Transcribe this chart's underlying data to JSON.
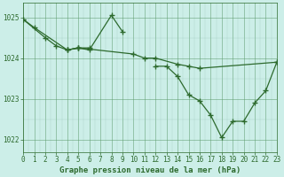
{
  "background_color": "#cceee8",
  "grid_color_major": "#5a9a6a",
  "grid_color_minor": "#8abcaa",
  "line_color": "#2d6a2d",
  "title": "Graphe pression niveau de la mer (hPa)",
  "title_fontsize": 6.5,
  "tick_fontsize": 5.5,
  "xlim": [
    0,
    23
  ],
  "ylim": [
    1021.7,
    1025.35
  ],
  "yticks": [
    1022,
    1023,
    1024,
    1025
  ],
  "xticks": [
    0,
    1,
    2,
    3,
    4,
    5,
    6,
    7,
    8,
    9,
    10,
    11,
    12,
    13,
    14,
    15,
    16,
    17,
    18,
    19,
    20,
    21,
    22,
    23
  ],
  "series": [
    {
      "x": [
        0,
        1,
        4,
        5,
        10,
        11,
        12,
        14,
        15,
        16,
        23
      ],
      "y": [
        1024.95,
        1024.75,
        1024.2,
        1024.25,
        1024.1,
        1024.0,
        1024.0,
        1023.85,
        1023.8,
        1023.75,
        1023.9
      ]
    },
    {
      "x": [
        0,
        2,
        3,
        4,
        5,
        6
      ],
      "y": [
        1024.95,
        1024.5,
        1024.3,
        1024.2,
        1024.25,
        1024.25
      ]
    },
    {
      "x": [
        4,
        5,
        6,
        8,
        9
      ],
      "y": [
        1024.2,
        1024.25,
        1024.2,
        1025.05,
        1024.65
      ]
    },
    {
      "x": [
        12,
        13,
        14,
        15,
        16,
        17,
        18,
        19,
        20,
        21,
        22,
        23
      ],
      "y": [
        1023.8,
        1023.8,
        1023.55,
        1023.1,
        1022.95,
        1022.6,
        1022.05,
        1022.45,
        1022.45,
        1022.9,
        1023.2,
        1023.9
      ]
    }
  ]
}
